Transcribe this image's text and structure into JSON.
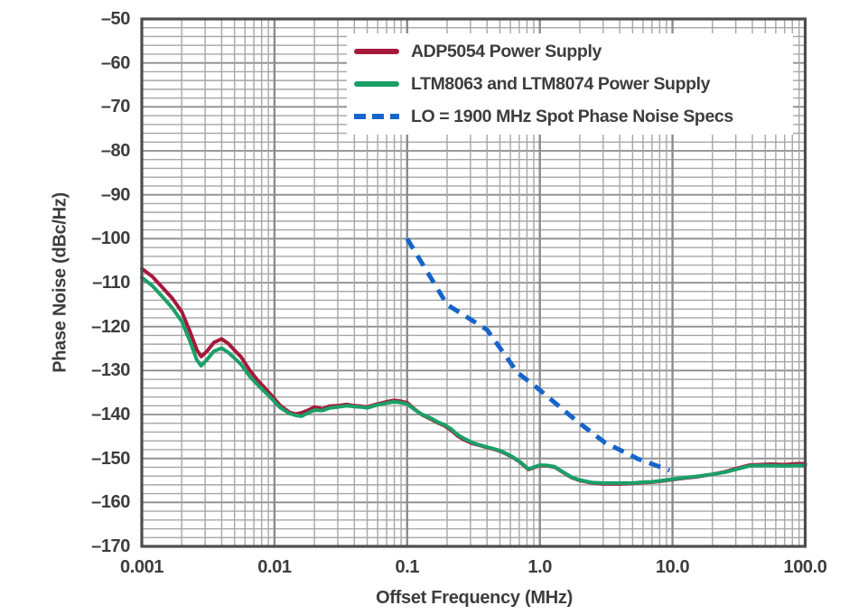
{
  "chart_data": {
    "type": "line",
    "title": "",
    "xlabel": "Offset Frequency (MHz)",
    "ylabel": "Phase Noise (dBc/Hz)",
    "x_scale": "log",
    "x_range": [
      0.001,
      100
    ],
    "y_range": [
      -170,
      -50
    ],
    "grid": true,
    "legend_position": "top-right",
    "x_ticks": [
      {
        "label": "0.001",
        "value": 0.001
      },
      {
        "label": "0.01",
        "value": 0.01
      },
      {
        "label": "0.1",
        "value": 0.1
      },
      {
        "label": "1.0",
        "value": 1
      },
      {
        "label": "10.0",
        "value": 10
      },
      {
        "label": "100.0",
        "value": 100
      }
    ],
    "y_ticks": [
      {
        "label": "–50",
        "value": -50
      },
      {
        "label": "–60",
        "value": -60
      },
      {
        "label": "–70",
        "value": -70
      },
      {
        "label": "–80",
        "value": -80
      },
      {
        "label": "–90",
        "value": -90
      },
      {
        "label": "–100",
        "value": -100
      },
      {
        "label": "–110",
        "value": -110
      },
      {
        "label": "–120",
        "value": -120
      },
      {
        "label": "–130",
        "value": -130
      },
      {
        "label": "–140",
        "value": -140
      },
      {
        "label": "–150",
        "value": -150
      },
      {
        "label": "–160",
        "value": -160
      },
      {
        "label": "–170",
        "value": -170
      }
    ],
    "y_minor_step": 2,
    "colors": {
      "grid_minor": "#a6a6a6",
      "grid_major": "#8c8c8c",
      "border": "#4d4d4d",
      "text": "#3d3d3d"
    },
    "series": [
      {
        "name": "ADP5054 Power Supply",
        "color": "#a6193b",
        "style": "solid",
        "points": [
          [
            0.001,
            -106.8
          ],
          [
            0.0012,
            -108.6
          ],
          [
            0.0014,
            -110.8
          ],
          [
            0.0017,
            -113.6
          ],
          [
            0.002,
            -116.6
          ],
          [
            0.0023,
            -121.0
          ],
          [
            0.0026,
            -125.3
          ],
          [
            0.0028,
            -126.8
          ],
          [
            0.0031,
            -125.6
          ],
          [
            0.0035,
            -123.6
          ],
          [
            0.004,
            -122.8
          ],
          [
            0.0045,
            -123.9
          ],
          [
            0.005,
            -125.4
          ],
          [
            0.0056,
            -126.9
          ],
          [
            0.0065,
            -129.9
          ],
          [
            0.0075,
            -132.3
          ],
          [
            0.0085,
            -134.0
          ],
          [
            0.0096,
            -135.8
          ],
          [
            0.011,
            -137.9
          ],
          [
            0.013,
            -139.5
          ],
          [
            0.0145,
            -139.9
          ],
          [
            0.016,
            -139.6
          ],
          [
            0.018,
            -139.0
          ],
          [
            0.02,
            -138.3
          ],
          [
            0.023,
            -138.7
          ],
          [
            0.026,
            -138.1
          ],
          [
            0.03,
            -138.0
          ],
          [
            0.035,
            -137.7
          ],
          [
            0.04,
            -138.0
          ],
          [
            0.045,
            -138.1
          ],
          [
            0.05,
            -138.3
          ],
          [
            0.055,
            -137.9
          ],
          [
            0.06,
            -137.6
          ],
          [
            0.07,
            -137.1
          ],
          [
            0.08,
            -136.8
          ],
          [
            0.09,
            -137.0
          ],
          [
            0.1,
            -137.3
          ],
          [
            0.115,
            -138.9
          ],
          [
            0.13,
            -140.1
          ],
          [
            0.15,
            -141.0
          ],
          [
            0.17,
            -141.9
          ],
          [
            0.19,
            -142.5
          ],
          [
            0.215,
            -143.6
          ],
          [
            0.24,
            -144.9
          ],
          [
            0.27,
            -145.8
          ],
          [
            0.31,
            -146.6
          ],
          [
            0.35,
            -147.0
          ],
          [
            0.4,
            -147.5
          ],
          [
            0.45,
            -147.9
          ],
          [
            0.5,
            -148.3
          ],
          [
            0.56,
            -149.0
          ],
          [
            0.62,
            -149.7
          ],
          [
            0.7,
            -150.7
          ],
          [
            0.82,
            -152.5
          ],
          [
            0.92,
            -152.0
          ],
          [
            1.0,
            -151.6
          ],
          [
            1.15,
            -151.7
          ],
          [
            1.3,
            -152.0
          ],
          [
            1.5,
            -153.2
          ],
          [
            1.75,
            -154.4
          ],
          [
            2.0,
            -155.0
          ],
          [
            2.5,
            -155.6
          ],
          [
            3.0,
            -155.8
          ],
          [
            4.0,
            -155.8
          ],
          [
            5.0,
            -155.7
          ],
          [
            6.0,
            -155.5
          ],
          [
            7.0,
            -155.4
          ],
          [
            8.0,
            -155.2
          ],
          [
            10.0,
            -154.8
          ],
          [
            12.0,
            -154.5
          ],
          [
            15.0,
            -154.2
          ],
          [
            20.0,
            -153.6
          ],
          [
            25.0,
            -153.0
          ],
          [
            30.0,
            -152.3
          ],
          [
            38.0,
            -151.5
          ],
          [
            45.0,
            -151.4
          ],
          [
            55.0,
            -151.3
          ],
          [
            70.0,
            -151.4
          ],
          [
            85.0,
            -151.2
          ],
          [
            100.0,
            -151.2
          ]
        ]
      },
      {
        "name": "LTM8063 and LTM8074 Power Supply",
        "color": "#1ba068",
        "style": "solid",
        "points": [
          [
            0.001,
            -108.8
          ],
          [
            0.0012,
            -110.7
          ],
          [
            0.0014,
            -112.9
          ],
          [
            0.0017,
            -115.8
          ],
          [
            0.002,
            -118.8
          ],
          [
            0.0023,
            -123.2
          ],
          [
            0.0026,
            -127.6
          ],
          [
            0.0028,
            -128.9
          ],
          [
            0.0031,
            -127.5
          ],
          [
            0.0035,
            -125.6
          ],
          [
            0.004,
            -124.9
          ],
          [
            0.0045,
            -125.9
          ],
          [
            0.005,
            -127.2
          ],
          [
            0.0056,
            -128.6
          ],
          [
            0.0065,
            -131.3
          ],
          [
            0.0075,
            -133.3
          ],
          [
            0.0085,
            -134.9
          ],
          [
            0.0096,
            -136.5
          ],
          [
            0.011,
            -138.4
          ],
          [
            0.013,
            -139.8
          ],
          [
            0.0145,
            -140.2
          ],
          [
            0.016,
            -140.4
          ],
          [
            0.018,
            -139.6
          ],
          [
            0.02,
            -139.0
          ],
          [
            0.023,
            -139.1
          ],
          [
            0.026,
            -138.5
          ],
          [
            0.03,
            -138.3
          ],
          [
            0.035,
            -138.0
          ],
          [
            0.04,
            -138.2
          ],
          [
            0.045,
            -138.3
          ],
          [
            0.05,
            -138.5
          ],
          [
            0.055,
            -138.1
          ],
          [
            0.06,
            -137.8
          ],
          [
            0.07,
            -137.4
          ],
          [
            0.08,
            -137.1
          ],
          [
            0.09,
            -137.3
          ],
          [
            0.1,
            -137.6
          ],
          [
            0.115,
            -139.0
          ],
          [
            0.13,
            -140.0
          ],
          [
            0.15,
            -140.8
          ],
          [
            0.17,
            -141.7
          ],
          [
            0.19,
            -142.3
          ],
          [
            0.215,
            -143.3
          ],
          [
            0.24,
            -144.6
          ],
          [
            0.27,
            -145.5
          ],
          [
            0.31,
            -146.4
          ],
          [
            0.35,
            -146.9
          ],
          [
            0.4,
            -147.4
          ],
          [
            0.45,
            -147.8
          ],
          [
            0.5,
            -148.2
          ],
          [
            0.56,
            -148.9
          ],
          [
            0.62,
            -149.6
          ],
          [
            0.7,
            -150.6
          ],
          [
            0.82,
            -152.4
          ],
          [
            0.92,
            -151.9
          ],
          [
            1.0,
            -151.5
          ],
          [
            1.15,
            -151.6
          ],
          [
            1.3,
            -151.9
          ],
          [
            1.5,
            -153.1
          ],
          [
            1.75,
            -154.3
          ],
          [
            2.0,
            -154.9
          ],
          [
            2.5,
            -155.5
          ],
          [
            3.0,
            -155.6
          ],
          [
            4.0,
            -155.6
          ],
          [
            5.0,
            -155.6
          ],
          [
            6.0,
            -155.4
          ],
          [
            7.0,
            -155.3
          ],
          [
            8.0,
            -155.1
          ],
          [
            10.0,
            -154.7
          ],
          [
            12.0,
            -154.4
          ],
          [
            15.0,
            -154.1
          ],
          [
            20.0,
            -153.6
          ],
          [
            25.0,
            -153.1
          ],
          [
            30.0,
            -152.5
          ],
          [
            38.0,
            -151.7
          ],
          [
            45.0,
            -151.6
          ],
          [
            55.0,
            -151.6
          ],
          [
            70.0,
            -151.7
          ],
          [
            85.0,
            -151.6
          ],
          [
            100.0,
            -151.6
          ]
        ]
      },
      {
        "name": "LO = 1900 MHz Spot Phase Noise Specs",
        "color": "#1565cb",
        "style": "dashed",
        "points": [
          [
            0.1,
            -100
          ],
          [
            0.2,
            -115
          ],
          [
            0.4,
            -120.7
          ],
          [
            0.68,
            -130.5
          ],
          [
            0.9,
            -133.3
          ],
          [
            1.9,
            -141.5
          ],
          [
            3.1,
            -146.4
          ],
          [
            5.5,
            -150.1
          ],
          [
            9.5,
            -152.7
          ]
        ]
      }
    ]
  }
}
